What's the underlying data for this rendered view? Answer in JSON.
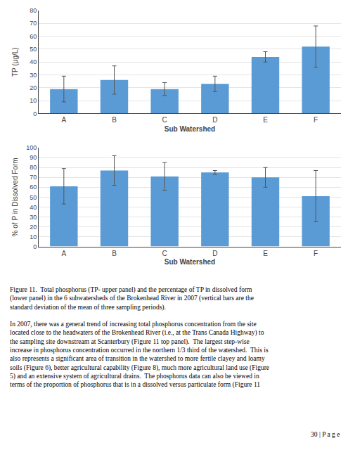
{
  "chart_data": [
    {
      "type": "bar",
      "xlabel": "Sub Watershed",
      "ylabel": "TP (μg/L)",
      "categories": [
        "A",
        "B",
        "C",
        "D",
        "E",
        "F"
      ],
      "values": [
        19,
        26,
        19,
        23,
        44,
        52
      ],
      "errors": [
        10,
        11,
        5,
        6,
        4,
        16
      ],
      "color": "#5b9bd5",
      "error_color": "#555555",
      "ylim": [
        0,
        80
      ],
      "yticks": [
        0,
        10,
        20,
        30,
        40,
        50,
        60,
        70,
        80
      ],
      "grid": true
    },
    {
      "type": "bar",
      "xlabel": "Sub Watershed",
      "ylabel": "% of P in Dissolved Form",
      "categories": [
        "A",
        "B",
        "C",
        "D",
        "E",
        "F"
      ],
      "values": [
        61,
        77,
        71,
        75,
        70,
        51
      ],
      "errors": [
        18,
        15,
        14,
        2,
        10,
        26
      ],
      "color": "#5b9bd5",
      "error_color": "#555555",
      "ylim": [
        0,
        100
      ],
      "yticks": [
        0,
        10,
        20,
        30,
        40,
        50,
        60,
        70,
        80,
        90,
        100
      ],
      "grid": true
    }
  ],
  "caption": "Figure 11.  Total phosphorus (TP- upper panel) and the percentage of TP in dissolved form\n(lower panel) in the 6 subwatersheds of the Brokenhead River in 2007 (vertical bars are the\nstandard deviation of the mean of three sampling periods).",
  "body_text": "In 2007, there was a general trend of increasing total phosphorus concentration from the site\nlocated close to the headwaters of the Brokenhead River (i.e., at the Trans Canada Highway) to\nthe sampling site downstream at Scanterbury (Figure 11 top panel).  The largest step-wise\nincrease in phosphorus concentration occurred in the northern 1/3 third of the watershed.  This is\nalso represents a significant area of transition in the watershed to more fertile clayey and loamy\nsoils (Figure 6), better agricultural capability (Figure 8), much more agricultural land use (Figure\n5) and an extensive system of agricultural drains.  The phosphorus data can also be viewed in\nterms of the proportion of phosphorus that is in a dissolved versus particulate form (Figure 11",
  "page_number": "30 | P a g e"
}
